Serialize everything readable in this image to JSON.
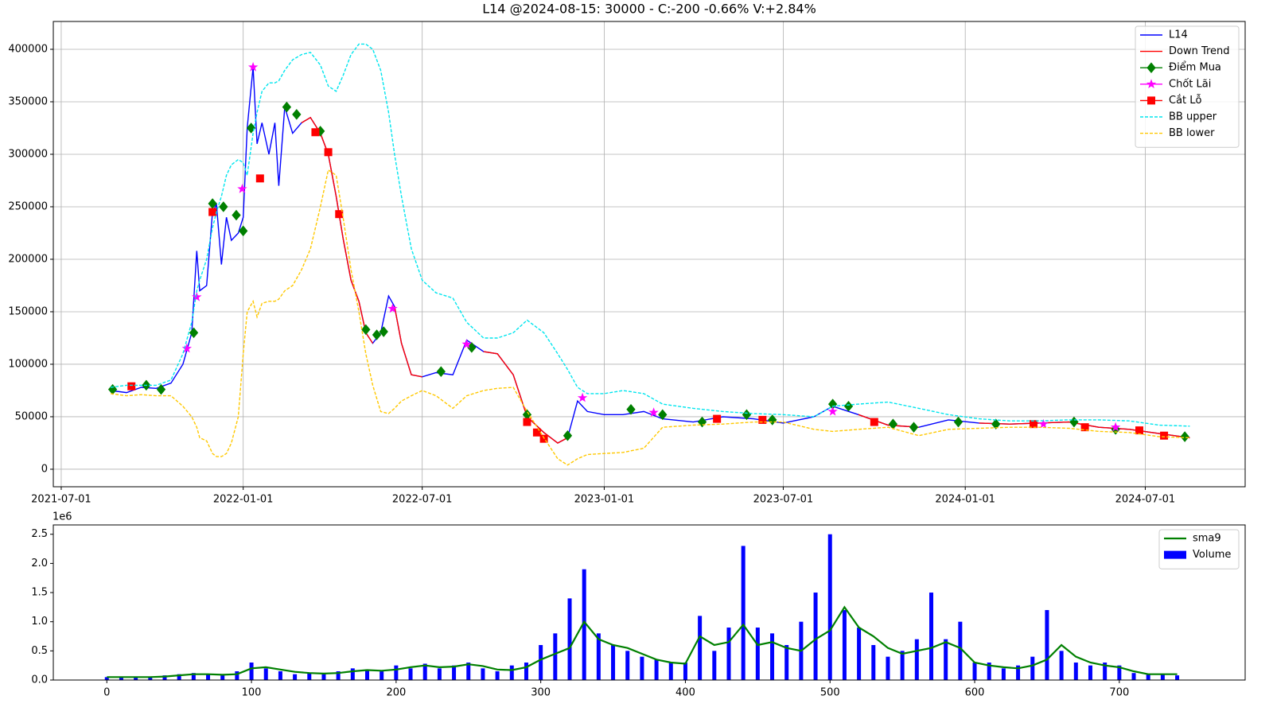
{
  "chart_data": [
    {
      "type": "line",
      "title": "L14 @2024-08-15: 30000 - C:-200 -0.66% V:+2.84%",
      "x": [
        "2021-08-20",
        "2021-09-05",
        "2021-09-20",
        "2021-10-05",
        "2021-10-20",
        "2021-11-01",
        "2021-11-10",
        "2021-11-15",
        "2021-11-18",
        "2021-11-25",
        "2021-12-01",
        "2021-12-05",
        "2021-12-10",
        "2021-12-15",
        "2021-12-20",
        "2021-12-27",
        "2022-01-01",
        "2022-01-05",
        "2022-01-11",
        "2022-01-15",
        "2022-01-20",
        "2022-01-27",
        "2022-02-02",
        "2022-02-06",
        "2022-02-12",
        "2022-02-20",
        "2022-03-01",
        "2022-03-10",
        "2022-03-20",
        "2022-03-28",
        "2022-04-05",
        "2022-04-12",
        "2022-04-20",
        "2022-04-28",
        "2022-05-05",
        "2022-05-12",
        "2022-05-20",
        "2022-05-28",
        "2022-06-03",
        "2022-06-10",
        "2022-06-20",
        "2022-07-01",
        "2022-07-15",
        "2022-08-01",
        "2022-08-15",
        "2022-09-01",
        "2022-09-15",
        "2022-10-01",
        "2022-10-15",
        "2022-11-01",
        "2022-11-15",
        "2022-11-25",
        "2022-12-05",
        "2022-12-15",
        "2023-01-01",
        "2023-01-20",
        "2023-02-10",
        "2023-03-01",
        "2023-04-01",
        "2023-05-01",
        "2023-06-01",
        "2023-07-01",
        "2023-08-01",
        "2023-08-20",
        "2023-09-15",
        "2023-10-15",
        "2023-11-15",
        "2023-12-15",
        "2024-01-15",
        "2024-02-15",
        "2024-03-15",
        "2024-04-15",
        "2024-05-15",
        "2024-06-15",
        "2024-07-15",
        "2024-08-15"
      ],
      "series": [
        {
          "name": "L14",
          "color": "#0000ff",
          "linestyle": "solid",
          "values": [
            75000,
            73000,
            78000,
            77000,
            82000,
            100000,
            130000,
            208000,
            170000,
            175000,
            245000,
            252000,
            195000,
            240000,
            218000,
            225000,
            240000,
            325000,
            383000,
            310000,
            330000,
            300000,
            330000,
            270000,
            345000,
            320000,
            330000,
            335000,
            320000,
            300000,
            260000,
            220000,
            180000,
            160000,
            130000,
            120000,
            130000,
            165000,
            155000,
            120000,
            90000,
            88000,
            92000,
            90000,
            123000,
            112000,
            110000,
            90000,
            50000,
            35000,
            25000,
            30000,
            65000,
            55000,
            52000,
            52000,
            55000,
            48000,
            45000,
            50000,
            48000,
            44000,
            50000,
            60000,
            52000,
            42000,
            40000,
            47000,
            44000,
            43000,
            44000,
            45000,
            40000,
            38000,
            34000,
            30000
          ]
        },
        {
          "name": "Down Trend",
          "color": "#ff0000",
          "linestyle": "solid",
          "values": [
            null,
            null,
            null,
            null,
            null,
            null,
            null,
            null,
            null,
            null,
            null,
            null,
            null,
            null,
            null,
            null,
            null,
            null,
            null,
            null,
            null,
            null,
            null,
            null,
            null,
            null,
            330000,
            335000,
            320000,
            300000,
            260000,
            220000,
            180000,
            160000,
            130000,
            120000,
            null,
            null,
            155000,
            120000,
            90000,
            88000,
            null,
            null,
            null,
            112000,
            110000,
            90000,
            50000,
            35000,
            25000,
            30000,
            null,
            null,
            null,
            null,
            null,
            null,
            null,
            null,
            null,
            null,
            null,
            null,
            52000,
            42000,
            40000,
            null,
            44000,
            43000,
            44000,
            45000,
            40000,
            38000,
            34000,
            30000
          ]
        },
        {
          "name": "Điểm Mua",
          "color": "#008000",
          "marker": "diamond",
          "x": [
            "2021-08-22",
            "2021-09-25",
            "2021-10-10",
            "2021-11-12",
            "2021-12-01",
            "2021-12-12",
            "2021-12-25",
            "2022-01-01",
            "2022-01-09",
            "2022-02-14",
            "2022-02-24",
            "2022-03-20",
            "2022-05-05",
            "2022-05-16",
            "2022-05-23",
            "2022-07-20",
            "2022-08-20",
            "2022-10-15",
            "2022-11-25",
            "2023-01-28",
            "2023-03-01",
            "2023-04-10",
            "2023-05-25",
            "2023-06-20",
            "2023-08-20",
            "2023-09-05",
            "2023-10-20",
            "2023-11-10",
            "2023-12-25",
            "2024-02-01",
            "2024-04-20",
            "2024-06-01",
            "2024-08-10"
          ],
          "values": [
            76000,
            80000,
            76000,
            130000,
            253000,
            250000,
            242000,
            227000,
            325000,
            345000,
            338000,
            322000,
            133000,
            128000,
            131000,
            93000,
            116000,
            52000,
            32000,
            57000,
            52000,
            45000,
            52000,
            47000,
            62000,
            60000,
            43000,
            40000,
            45000,
            43000,
            45000,
            38000,
            31000
          ]
        },
        {
          "name": "Chốt Lãi",
          "color": "#ff00ff",
          "marker": "star",
          "x": [
            "2021-11-05",
            "2021-11-15",
            "2021-12-31",
            "2022-01-11",
            "2022-06-01",
            "2022-08-15",
            "2022-12-10",
            "2023-02-20",
            "2023-08-20",
            "2024-03-20",
            "2024-06-01"
          ],
          "values": [
            115000,
            164000,
            267000,
            383000,
            153000,
            119000,
            68000,
            54000,
            55000,
            43000,
            40000
          ]
        },
        {
          "name": "Cắt Lỗ",
          "color": "#ff0000",
          "marker": "square",
          "x": [
            "2021-09-10",
            "2021-12-01",
            "2022-01-18",
            "2022-03-15",
            "2022-03-28",
            "2022-04-08",
            "2022-10-15",
            "2022-10-25",
            "2022-11-01",
            "2023-04-25",
            "2023-06-10",
            "2023-10-01",
            "2024-03-10",
            "2024-05-01",
            "2024-06-25",
            "2024-07-20"
          ],
          "values": [
            79000,
            245000,
            277000,
            321000,
            302000,
            243000,
            45000,
            35000,
            29000,
            48000,
            47000,
            45000,
            43000,
            40000,
            37000,
            32000
          ]
        },
        {
          "name": "BB upper",
          "color": "#00e5ee",
          "linestyle": "dashed",
          "values": [
            78000,
            80000,
            80000,
            80000,
            85000,
            110000,
            140000,
            170000,
            180000,
            200000,
            230000,
            245000,
            260000,
            280000,
            290000,
            295000,
            292000,
            280000,
            320000,
            340000,
            360000,
            368000,
            368000,
            370000,
            380000,
            390000,
            395000,
            397000,
            385000,
            365000,
            360000,
            375000,
            395000,
            405000,
            405000,
            400000,
            380000,
            340000,
            300000,
            260000,
            210000,
            180000,
            168000,
            163000,
            140000,
            125000,
            125000,
            130000,
            142000,
            130000,
            110000,
            95000,
            78000,
            72000,
            72000,
            75000,
            72000,
            62000,
            58000,
            55000,
            53000,
            52000,
            50000,
            60000,
            62000,
            64000,
            58000,
            52000,
            48000,
            46000,
            46000,
            47000,
            47000,
            46000,
            42000,
            41000
          ]
        },
        {
          "name": "BB lower",
          "color": "#ffc800",
          "linestyle": "dashed",
          "values": [
            72000,
            70000,
            71000,
            70000,
            70000,
            60000,
            50000,
            40000,
            30000,
            27000,
            15000,
            12000,
            12000,
            15000,
            25000,
            50000,
            110000,
            150000,
            160000,
            145000,
            158000,
            160000,
            160000,
            162000,
            170000,
            175000,
            190000,
            210000,
            250000,
            285000,
            280000,
            240000,
            190000,
            150000,
            110000,
            80000,
            55000,
            53000,
            58000,
            65000,
            70000,
            75000,
            70000,
            58000,
            70000,
            75000,
            77000,
            78000,
            55000,
            30000,
            10000,
            4000,
            10000,
            14000,
            15000,
            16000,
            20000,
            40000,
            42000,
            43000,
            45000,
            45000,
            38000,
            36000,
            38000,
            40000,
            32000,
            38000,
            39000,
            40000,
            40000,
            39000,
            36000,
            35000,
            31000,
            30000
          ]
        }
      ],
      "xlim": [
        "2021-06-23",
        "2024-10-10"
      ],
      "xticks": [
        "2021-07-01",
        "2022-01-01",
        "2022-07-01",
        "2023-01-01",
        "2023-07-01",
        "2024-01-01",
        "2024-07-01"
      ],
      "ylim": [
        -16700,
        426500
      ],
      "yticks": [
        0,
        50000,
        100000,
        150000,
        200000,
        250000,
        300000,
        350000,
        400000
      ],
      "grid": true,
      "legend": "upper right"
    },
    {
      "type": "bar",
      "y_offset_label": "1e6",
      "x": [
        0,
        10,
        20,
        30,
        40,
        50,
        60,
        70,
        80,
        90,
        100,
        110,
        120,
        130,
        140,
        150,
        160,
        170,
        180,
        190,
        200,
        210,
        220,
        230,
        240,
        250,
        260,
        270,
        280,
        290,
        300,
        310,
        320,
        330,
        340,
        350,
        360,
        370,
        380,
        390,
        400,
        410,
        420,
        430,
        440,
        450,
        460,
        470,
        480,
        490,
        500,
        510,
        520,
        530,
        540,
        550,
        560,
        570,
        580,
        590,
        600,
        610,
        620,
        630,
        640,
        650,
        660,
        670,
        680,
        690,
        700,
        710,
        720,
        730,
        740
      ],
      "series": [
        {
          "name": "sma9",
          "type": "line",
          "color": "#008000",
          "values": [
            0.05,
            0.05,
            0.05,
            0.05,
            0.06,
            0.08,
            0.1,
            0.1,
            0.09,
            0.1,
            0.2,
            0.22,
            0.18,
            0.14,
            0.12,
            0.11,
            0.12,
            0.15,
            0.17,
            0.16,
            0.18,
            0.22,
            0.25,
            0.22,
            0.23,
            0.27,
            0.24,
            0.18,
            0.17,
            0.22,
            0.35,
            0.45,
            0.55,
            1.0,
            0.7,
            0.6,
            0.55,
            0.45,
            0.35,
            0.3,
            0.28,
            0.75,
            0.6,
            0.65,
            0.95,
            0.6,
            0.65,
            0.55,
            0.5,
            0.7,
            0.85,
            1.25,
            0.9,
            0.75,
            0.55,
            0.45,
            0.5,
            0.55,
            0.65,
            0.55,
            0.3,
            0.25,
            0.22,
            0.2,
            0.25,
            0.35,
            0.6,
            0.4,
            0.3,
            0.25,
            0.22,
            0.15,
            0.1,
            0.1,
            0.1
          ]
        },
        {
          "name": "Volume",
          "type": "bar",
          "color": "#0000ff",
          "values": [
            0.05,
            0.05,
            0.04,
            0.05,
            0.08,
            0.1,
            0.12,
            0.1,
            0.08,
            0.15,
            0.3,
            0.2,
            0.15,
            0.1,
            0.12,
            0.1,
            0.15,
            0.2,
            0.18,
            0.15,
            0.25,
            0.2,
            0.28,
            0.2,
            0.25,
            0.3,
            0.2,
            0.15,
            0.25,
            0.3,
            0.6,
            0.8,
            1.4,
            1.9,
            0.8,
            0.6,
            0.5,
            0.4,
            0.35,
            0.3,
            0.3,
            1.1,
            0.5,
            0.9,
            2.3,
            0.9,
            0.8,
            0.6,
            1.0,
            1.5,
            2.5,
            1.2,
            0.9,
            0.6,
            0.4,
            0.5,
            0.7,
            1.5,
            0.7,
            1.0,
            0.3,
            0.3,
            0.2,
            0.25,
            0.4,
            1.2,
            0.5,
            0.3,
            0.25,
            0.3,
            0.25,
            0.12,
            0.1,
            0.1,
            0.08
          ]
        }
      ],
      "xlim": [
        -37,
        787
      ],
      "xticks": [
        0,
        100,
        200,
        300,
        400,
        500,
        600,
        700
      ],
      "ylim": [
        0,
        2.66
      ],
      "yticks": [
        {
          "value": 0,
          "label": "0.0"
        },
        0.5,
        {
          "value": 1,
          "label": "1.0"
        },
        1.5,
        {
          "value": 2,
          "label": "2.0"
        },
        2.5
      ],
      "legend": "upper right"
    }
  ]
}
